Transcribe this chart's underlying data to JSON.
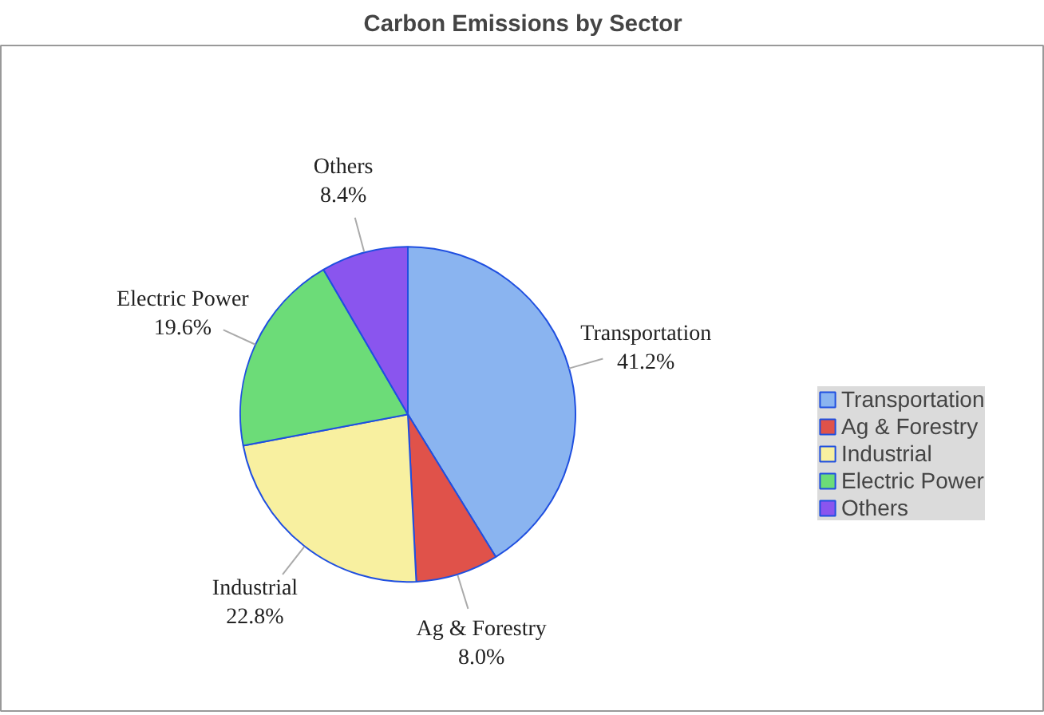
{
  "chart_data": {
    "type": "pie",
    "title": "Carbon Emissions by Sector",
    "categories": [
      "Transportation",
      "Ag & Forestry",
      "Industrial",
      "Electric Power",
      "Others"
    ],
    "values": [
      41.2,
      8.0,
      22.8,
      19.6,
      8.4
    ],
    "colors": [
      "#8ab4f0",
      "#e0524a",
      "#f8f0a0",
      "#6cdc78",
      "#8a55ee"
    ],
    "value_labels": [
      "41.2%",
      "8.0%",
      "22.8%",
      "19.6%",
      "8.4%"
    ],
    "legend": "right"
  }
}
